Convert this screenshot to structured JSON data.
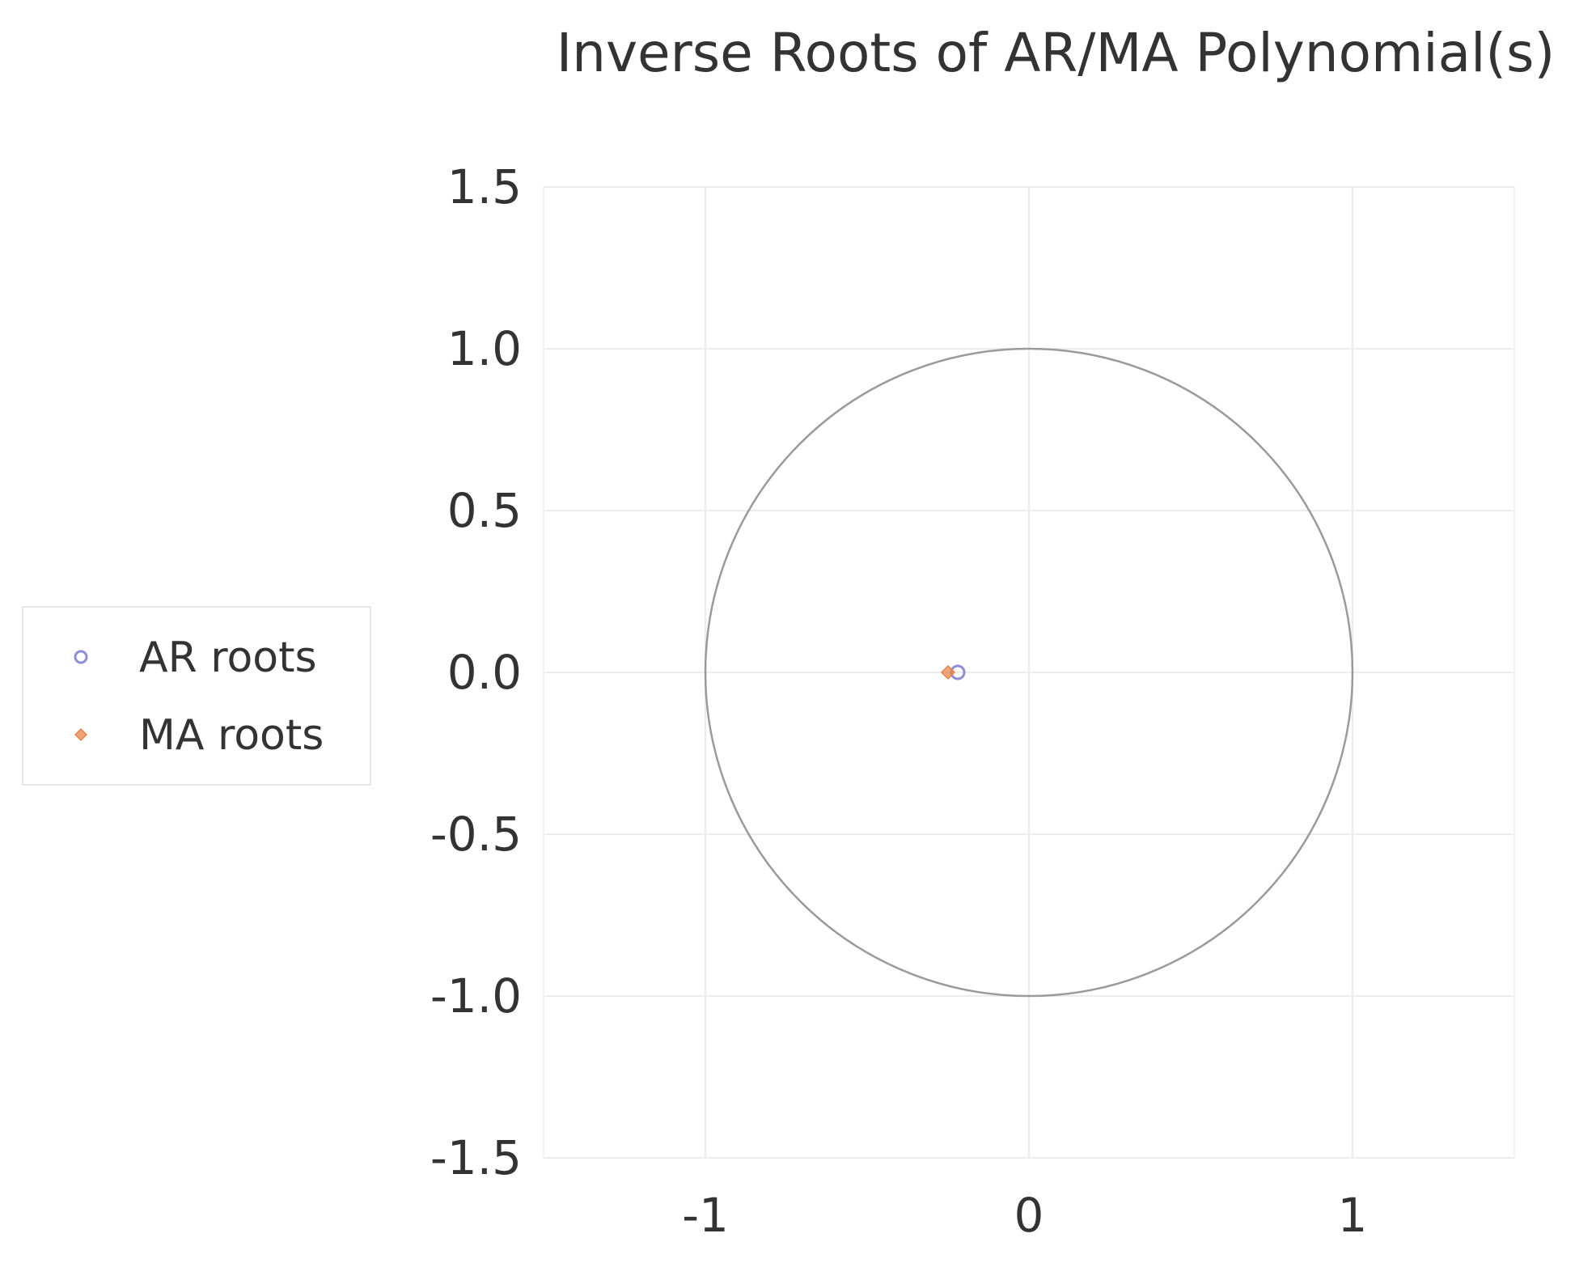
{
  "chart_data": {
    "type": "scatter",
    "title": "Inverse Roots of AR/MA Polynomial(s)",
    "xlabel": "",
    "ylabel": "",
    "xlim": [
      -1.5,
      1.5
    ],
    "ylim": [
      -1.5,
      1.5
    ],
    "x_ticks": [
      "-1",
      "0",
      "1"
    ],
    "x_tick_values": [
      -1,
      0,
      1
    ],
    "y_ticks": [
      "1.5",
      "1.0",
      "0.5",
      "0.0",
      "-0.5",
      "-1.0",
      "-1.5"
    ],
    "y_tick_values": [
      1.5,
      1.0,
      0.5,
      0.0,
      -0.5,
      -1.0,
      -1.5
    ],
    "grid": true,
    "unit_circle": true,
    "legend_position": "left",
    "series": [
      {
        "name": "AR roots",
        "marker": "circle",
        "color": "#8c8fd6",
        "points": [
          {
            "x": -0.22,
            "y": 0.0
          }
        ]
      },
      {
        "name": "MA roots",
        "marker": "diamond",
        "color": "#e8864a",
        "points": [
          {
            "x": -0.25,
            "y": 0.0
          }
        ]
      }
    ]
  }
}
